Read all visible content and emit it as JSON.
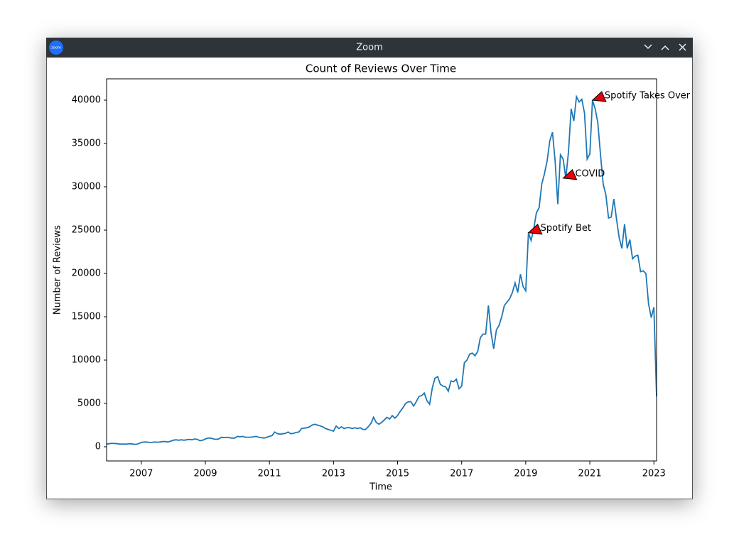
{
  "window": {
    "title": "Zoom",
    "icon_text": "zoom"
  },
  "chart_data": {
    "type": "line",
    "title": "Count of Reviews Over Time",
    "xlabel": "Time",
    "ylabel": "Number of Reviews",
    "color": "#1f77b4",
    "x": [
      "2005-12",
      "2006-01",
      "2006-02",
      "2006-03",
      "2006-04",
      "2006-05",
      "2006-06",
      "2006-07",
      "2006-08",
      "2006-09",
      "2006-10",
      "2006-11",
      "2006-12",
      "2007-01",
      "2007-02",
      "2007-03",
      "2007-04",
      "2007-05",
      "2007-06",
      "2007-07",
      "2007-08",
      "2007-09",
      "2007-10",
      "2007-11",
      "2007-12",
      "2008-01",
      "2008-02",
      "2008-03",
      "2008-04",
      "2008-05",
      "2008-06",
      "2008-07",
      "2008-08",
      "2008-09",
      "2008-10",
      "2008-11",
      "2008-12",
      "2009-01",
      "2009-02",
      "2009-03",
      "2009-04",
      "2009-05",
      "2009-06",
      "2009-07",
      "2009-08",
      "2009-09",
      "2009-10",
      "2009-11",
      "2009-12",
      "2010-01",
      "2010-02",
      "2010-03",
      "2010-04",
      "2010-05",
      "2010-06",
      "2010-07",
      "2010-08",
      "2010-09",
      "2010-10",
      "2010-11",
      "2010-12",
      "2011-01",
      "2011-02",
      "2011-03",
      "2011-04",
      "2011-05",
      "2011-06",
      "2011-07",
      "2011-08",
      "2011-09",
      "2011-10",
      "2011-11",
      "2011-12",
      "2012-01",
      "2012-02",
      "2012-03",
      "2012-04",
      "2012-05",
      "2012-06",
      "2012-07",
      "2012-08",
      "2012-09",
      "2012-10",
      "2012-11",
      "2012-12",
      "2013-01",
      "2013-02",
      "2013-03",
      "2013-04",
      "2013-05",
      "2013-06",
      "2013-07",
      "2013-08",
      "2013-09",
      "2013-10",
      "2013-11",
      "2013-12",
      "2014-01",
      "2014-02",
      "2014-03",
      "2014-04",
      "2014-05",
      "2014-06",
      "2014-07",
      "2014-08",
      "2014-09",
      "2014-10",
      "2014-11",
      "2014-12",
      "2015-01",
      "2015-02",
      "2015-03",
      "2015-04",
      "2015-05",
      "2015-06",
      "2015-07",
      "2015-08",
      "2015-09",
      "2015-10",
      "2015-11",
      "2015-12",
      "2016-01",
      "2016-02",
      "2016-03",
      "2016-04",
      "2016-05",
      "2016-06",
      "2016-07",
      "2016-08",
      "2016-09",
      "2016-10",
      "2016-11",
      "2016-12",
      "2017-01",
      "2017-02",
      "2017-03",
      "2017-04",
      "2017-05",
      "2017-06",
      "2017-07",
      "2017-08",
      "2017-09",
      "2017-10",
      "2017-11",
      "2017-12",
      "2018-01",
      "2018-02",
      "2018-03",
      "2018-04",
      "2018-05",
      "2018-06",
      "2018-07",
      "2018-08",
      "2018-09",
      "2018-10",
      "2018-11",
      "2018-12",
      "2019-01",
      "2019-02",
      "2019-03",
      "2019-04",
      "2019-05",
      "2019-06",
      "2019-07",
      "2019-08",
      "2019-09",
      "2019-10",
      "2019-11",
      "2019-12",
      "2020-01",
      "2020-02",
      "2020-03",
      "2020-04",
      "2020-05",
      "2020-06",
      "2020-07",
      "2020-08",
      "2020-09",
      "2020-10",
      "2020-11",
      "2020-12",
      "2021-01",
      "2021-02",
      "2021-03",
      "2021-04",
      "2021-05",
      "2021-06",
      "2021-07",
      "2021-08",
      "2021-09",
      "2021-10",
      "2021-11",
      "2021-12",
      "2022-01",
      "2022-02",
      "2022-03",
      "2022-04",
      "2022-05",
      "2022-06",
      "2022-07",
      "2022-08",
      "2022-09",
      "2022-10",
      "2022-11",
      "2022-12",
      "2023-01",
      "2023-02"
    ],
    "values": [
      300,
      350,
      400,
      380,
      350,
      300,
      320,
      300,
      330,
      350,
      300,
      280,
      350,
      500,
      550,
      550,
      500,
      500,
      550,
      520,
      550,
      600,
      600,
      550,
      650,
      750,
      800,
      750,
      800,
      750,
      800,
      850,
      800,
      900,
      850,
      700,
      750,
      900,
      1000,
      1000,
      900,
      850,
      900,
      1100,
      1050,
      1100,
      1050,
      1000,
      1000,
      1200,
      1150,
      1200,
      1100,
      1100,
      1100,
      1150,
      1200,
      1100,
      1050,
      1000,
      1100,
      1200,
      1300,
      1700,
      1500,
      1450,
      1500,
      1550,
      1700,
      1500,
      1550,
      1650,
      1700,
      2100,
      2150,
      2200,
      2300,
      2500,
      2600,
      2500,
      2400,
      2300,
      2100,
      2000,
      1900,
      1800,
      2400,
      2100,
      2300,
      2100,
      2200,
      2200,
      2100,
      2200,
      2100,
      2200,
      2000,
      2000,
      2300,
      2700,
      3400,
      2800,
      2600,
      2800,
      3100,
      3400,
      3200,
      3600,
      3300,
      3600,
      4100,
      4500,
      5000,
      5200,
      5200,
      4700,
      5200,
      5800,
      5900,
      6200,
      5300,
      4900,
      6800,
      7900,
      8100,
      7200,
      7000,
      6900,
      6400,
      7600,
      7500,
      7800,
      6700,
      7000,
      9700,
      10000,
      10700,
      10800,
      10500,
      11000,
      12600,
      13000,
      13000,
      16300,
      13200,
      11300,
      13500,
      14000,
      15000,
      16300,
      16700,
      17100,
      17800,
      18900,
      17800,
      19900,
      18500,
      18000,
      24700,
      23800,
      25200,
      27000,
      27600,
      30300,
      31500,
      33000,
      35300,
      36300,
      33000,
      28000,
      33700,
      33200,
      31000,
      34000,
      39000,
      37600,
      40400,
      39800,
      40100,
      38500,
      33200,
      33800,
      40000,
      39000,
      37400,
      33700,
      30300,
      29100,
      26400,
      26500,
      28600,
      26300,
      24100,
      22900,
      25700,
      22900,
      23900,
      21700,
      22000,
      22100,
      20200,
      20300,
      20000,
      16500,
      14900,
      16100,
      5800
    ],
    "xlim": [
      "2005-12",
      "2023-02"
    ],
    "xticks": [
      "2007",
      "2009",
      "2011",
      "2013",
      "2015",
      "2017",
      "2019",
      "2021",
      "2023"
    ],
    "ylim": [
      -1640,
      42460
    ],
    "yticks": [
      0,
      5000,
      10000,
      15000,
      20000,
      25000,
      30000,
      35000,
      40000
    ],
    "annotations": [
      {
        "text": "Spotify Bet",
        "x": "2019-02",
        "y": 24700
      },
      {
        "text": "COVID",
        "x": "2020-03",
        "y": 31000
      },
      {
        "text": "Spotify Takes Over",
        "x": "2021-02",
        "y": 40000
      }
    ]
  }
}
